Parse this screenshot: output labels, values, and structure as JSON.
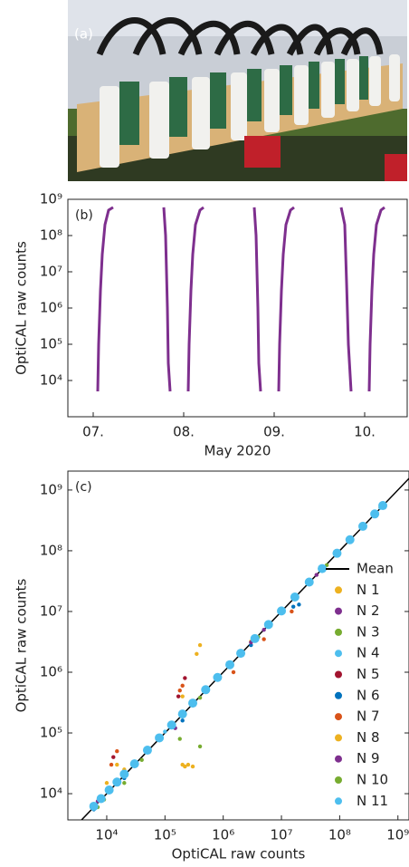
{
  "photo_label": "(a)",
  "chart_data": [
    {
      "type": "line",
      "annotations": [
        "(b)"
      ],
      "ylabel": "OptiCAL raw counts",
      "xlabel": "May 2020",
      "log_y": true,
      "xlim": [
        6.72,
        10.47
      ],
      "ylim": [
        1000,
        1000000000
      ],
      "xticks": [
        {
          "value": 7,
          "label": "07."
        },
        {
          "value": 8,
          "label": "08."
        },
        {
          "value": 9,
          "label": "09."
        },
        {
          "value": 10,
          "label": "10."
        }
      ],
      "yticks": [
        {
          "value": 10000,
          "label": "10⁴"
        },
        {
          "value": 100000,
          "label": "10⁵"
        },
        {
          "value": 1000000,
          "label": "10⁶"
        },
        {
          "value": 10000000,
          "label": "10⁷"
        },
        {
          "value": 100000000,
          "label": "10⁸"
        },
        {
          "value": 1000000000,
          "label": "10⁹"
        }
      ],
      "series": [
        {
          "color": "#7e2f8e",
          "x": [
            7.05,
            7.06,
            7.08,
            7.1,
            7.13,
            7.17,
            7.22,
            7.5,
            7.78,
            7.8,
            7.82,
            7.83,
            7.85,
            7.95,
            8.05,
            8.06,
            8.08,
            8.1,
            8.13,
            8.18,
            8.22,
            8.5,
            8.78,
            8.8,
            8.82,
            8.83,
            8.85,
            8.95,
            9.05,
            9.06,
            9.08,
            9.1,
            9.13,
            9.18,
            9.22,
            9.5,
            9.74,
            9.78,
            9.8,
            9.82,
            9.85,
            9.95,
            10.05,
            10.06,
            10.08,
            10.1,
            10.13,
            10.18,
            10.22
          ],
          "values": [
            5000,
            100000,
            3000000,
            30000000,
            200000000,
            500000000,
            600000000,
            null,
            600000000,
            100000000,
            1000000,
            30000,
            5000,
            null,
            5000,
            100000,
            3000000,
            30000000,
            200000000,
            500000000,
            600000000,
            null,
            600000000,
            100000000,
            1000000,
            30000,
            5000,
            null,
            5000,
            100000,
            3000000,
            30000000,
            200000000,
            500000000,
            600000000,
            null,
            600000000,
            200000000,
            5000000,
            100000,
            5000,
            null,
            5000,
            100000,
            3000000,
            30000000,
            200000000,
            500000000,
            600000000
          ]
        }
      ]
    },
    {
      "type": "scatter",
      "annotations": [
        "(c)"
      ],
      "ylabel": "OptiCAL raw counts",
      "xlabel": "OptiCAL raw counts",
      "log_x": true,
      "log_y": true,
      "xlim": [
        2150,
        1550000000
      ],
      "ylim": [
        3700,
        2050000000
      ],
      "legend": "right",
      "xticks": [
        {
          "value": 10000,
          "label": "10⁴"
        },
        {
          "value": 100000,
          "label": "10⁵"
        },
        {
          "value": 1000000,
          "label": "10⁶"
        },
        {
          "value": 10000000,
          "label": "10⁷"
        },
        {
          "value": 100000000,
          "label": "10⁸"
        },
        {
          "value": 1000000000,
          "label": "10⁹"
        }
      ],
      "yticks": [
        {
          "value": 10000,
          "label": "10⁴"
        },
        {
          "value": 100000,
          "label": "10⁵"
        },
        {
          "value": 1000000,
          "label": "10⁶"
        },
        {
          "value": 10000000,
          "label": "10⁷"
        },
        {
          "value": 100000000,
          "label": "10⁸"
        },
        {
          "value": 1000000000,
          "label": "10⁹"
        }
      ],
      "series": [
        {
          "name": "Mean",
          "color": "#000000",
          "style": "line",
          "x": [
            2150,
            1550000000
          ],
          "values": [
            2150,
            1550000000
          ]
        },
        {
          "name": "N 1",
          "color": "#edb120",
          "x": [
            6000,
            20000,
            200000,
            220000,
            250000,
            300000,
            3000000,
            500000000
          ],
          "values": [
            6500,
            25000,
            30000,
            28000,
            30000,
            28000,
            3200000,
            520000000
          ]
        },
        {
          "name": "N 2",
          "color": "#7e2f8e",
          "x": [
            7000,
            50000,
            150000,
            5000000,
            40000000
          ],
          "values": [
            7500,
            50000,
            120000,
            5000000,
            40000000
          ]
        },
        {
          "name": "N 3",
          "color": "#77ac30",
          "x": [
            7000,
            20000,
            180000,
            400000,
            10000000
          ],
          "values": [
            6000,
            15000,
            80000,
            60000,
            10000000
          ]
        },
        {
          "name": "N 4",
          "color": "#4dbeee",
          "x": [
            6000,
            100000,
            10000000,
            500000000
          ],
          "values": [
            6200,
            105000,
            10500000,
            510000000
          ]
        },
        {
          "name": "N 5",
          "color": "#a2142f",
          "x": [
            13000,
            170000,
            220000
          ],
          "values": [
            40000,
            400000,
            800000
          ]
        },
        {
          "name": "N 6",
          "color": "#0072bd",
          "x": [
            6000,
            20000,
            200000,
            3000000,
            16000000,
            20000000
          ],
          "values": [
            5500,
            18000,
            160000,
            2800000,
            12000000,
            13000000
          ]
        },
        {
          "name": "N 7",
          "color": "#d95319",
          "x": [
            12000,
            15000,
            180000,
            200000,
            1500000,
            5000000,
            15000000
          ],
          "values": [
            30000,
            50000,
            500000,
            600000,
            1000000,
            3500000,
            10000000
          ]
        },
        {
          "name": "N 8",
          "color": "#edb120",
          "x": [
            10000,
            15000,
            200000,
            350000,
            400000
          ],
          "values": [
            15000,
            30000,
            400000,
            2000000,
            2800000
          ]
        },
        {
          "name": "N 9",
          "color": "#7e2f8e",
          "x": [
            8000,
            30000,
            300000,
            3000000,
            30000000
          ],
          "values": [
            8500,
            32000,
            310000,
            3100000,
            31000000
          ]
        },
        {
          "name": "N 10",
          "color": "#77ac30",
          "x": [
            9000,
            40000,
            400000,
            4000000,
            60000000
          ],
          "values": [
            8000,
            36000,
            380000,
            3800000,
            58000000
          ]
        },
        {
          "name": "N 11",
          "color": "#4dbeee",
          "x": [
            6000,
            8000,
            11000,
            15000,
            20000,
            30000,
            50000,
            80000,
            130000,
            200000,
            300000,
            500000,
            800000,
            1300000,
            2000000,
            3500000,
            6000000,
            10000000,
            17000000,
            30000000,
            50000000,
            90000000,
            150000000,
            250000000,
            400000000,
            550000000
          ],
          "values": [
            6200,
            8300,
            11500,
            15500,
            21000,
            31000,
            52000,
            83000,
            135000,
            205000,
            310000,
            515000,
            820000,
            1330000,
            2050000,
            3580000,
            6100000,
            10200000,
            17300000,
            30500000,
            50800000,
            91000000,
            152000000,
            253000000,
            404000000,
            555000000
          ]
        }
      ]
    }
  ]
}
